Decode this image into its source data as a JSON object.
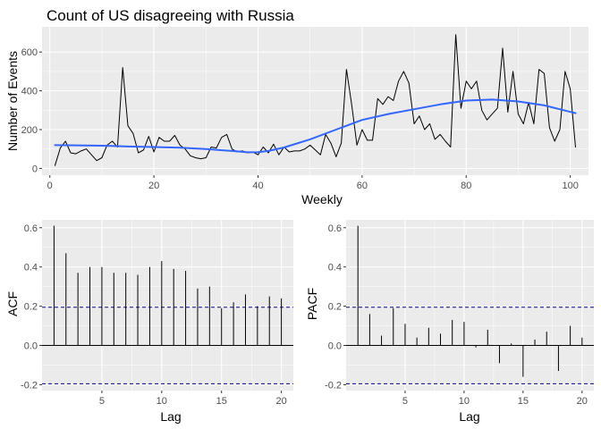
{
  "chart_data": [
    {
      "id": "events",
      "type": "line",
      "title": "Count of US disagreeing with Russia",
      "xlabel": "Weekly",
      "ylabel": "Number of Events",
      "xlim": [
        -1.5,
        103.5
      ],
      "ylim": [
        -35,
        730
      ],
      "xticks": [
        0,
        20,
        40,
        60,
        80,
        100
      ],
      "yticks": [
        0,
        200,
        400,
        600
      ],
      "grid": true,
      "series": [
        {
          "kind": "raw",
          "color": "#000000",
          "x": [
            1,
            2,
            3,
            4,
            5,
            6,
            7,
            8,
            9,
            10,
            11,
            12,
            13,
            14,
            15,
            16,
            17,
            18,
            19,
            20,
            21,
            22,
            23,
            24,
            25,
            26,
            27,
            28,
            29,
            30,
            31,
            32,
            33,
            34,
            35,
            36,
            37,
            38,
            39,
            40,
            41,
            42,
            43,
            44,
            45,
            46,
            47,
            48,
            49,
            50,
            51,
            52,
            53,
            54,
            55,
            56,
            57,
            58,
            59,
            60,
            61,
            62,
            63,
            64,
            65,
            66,
            67,
            68,
            69,
            70,
            71,
            72,
            73,
            74,
            75,
            76,
            77,
            78,
            79,
            80,
            81,
            82,
            83,
            84,
            85,
            86,
            87,
            88,
            89,
            90,
            91,
            92,
            93,
            94,
            95,
            96,
            97,
            98,
            99,
            100,
            101
          ],
          "y": [
            15,
            105,
            140,
            80,
            75,
            90,
            100,
            70,
            40,
            55,
            120,
            140,
            110,
            520,
            220,
            180,
            80,
            95,
            165,
            85,
            160,
            140,
            140,
            170,
            120,
            100,
            65,
            55,
            50,
            55,
            110,
            105,
            160,
            175,
            100,
            85,
            90,
            80,
            85,
            70,
            110,
            80,
            125,
            70,
            110,
            85,
            90,
            90,
            100,
            120,
            95,
            70,
            175,
            130,
            60,
            130,
            510,
            330,
            120,
            200,
            145,
            145,
            360,
            330,
            370,
            350,
            450,
            500,
            440,
            230,
            270,
            200,
            230,
            150,
            175,
            140,
            110,
            690,
            310,
            450,
            410,
            450,
            300,
            250,
            280,
            310,
            620,
            290,
            500,
            280,
            230,
            340,
            230,
            510,
            490,
            210,
            140,
            200,
            500,
            410,
            110
          ]
        },
        {
          "kind": "smooth",
          "color": "#3366ff",
          "x": [
            1,
            5,
            10,
            15,
            20,
            25,
            30,
            35,
            38,
            40,
            42,
            45,
            50,
            55,
            60,
            65,
            70,
            75,
            80,
            85,
            90,
            95,
            101
          ],
          "y": [
            120,
            119,
            117,
            113,
            110,
            107,
            100,
            90,
            83,
            84,
            90,
            108,
            150,
            200,
            250,
            280,
            305,
            330,
            350,
            355,
            345,
            325,
            285
          ]
        }
      ]
    },
    {
      "id": "acf",
      "type": "bar",
      "title": "",
      "xlabel": "Lag",
      "ylabel": "ACF",
      "xlim": [
        0,
        21
      ],
      "ylim": [
        -0.23,
        0.64
      ],
      "xticks": [
        5,
        10,
        15,
        20
      ],
      "yticks": [
        -0.2,
        0.0,
        0.2,
        0.4,
        0.6
      ],
      "ytick_labels": [
        "-0.2",
        "0.0",
        "0.2",
        "0.4",
        "0.6"
      ],
      "grid": true,
      "confidence_band": 0.195,
      "band_color": "#00008b",
      "x": [
        1,
        2,
        3,
        4,
        5,
        6,
        7,
        8,
        9,
        10,
        11,
        12,
        13,
        14,
        15,
        16,
        17,
        18,
        19,
        20
      ],
      "values": [
        0.61,
        0.47,
        0.37,
        0.4,
        0.4,
        0.37,
        0.37,
        0.36,
        0.4,
        0.43,
        0.39,
        0.38,
        0.29,
        0.3,
        0.19,
        0.22,
        0.26,
        0.2,
        0.25,
        0.24
      ]
    },
    {
      "id": "pacf",
      "type": "bar",
      "title": "",
      "xlabel": "Lag",
      "ylabel": "PACF",
      "xlim": [
        0,
        21
      ],
      "ylim": [
        -0.23,
        0.64
      ],
      "xticks": [
        5,
        10,
        15,
        20
      ],
      "yticks": [
        -0.2,
        0.0,
        0.2,
        0.4,
        0.6
      ],
      "ytick_labels": [
        "-0.2",
        "0.0",
        "0.2",
        "0.4",
        "0.6"
      ],
      "grid": true,
      "confidence_band": 0.195,
      "band_color": "#00008b",
      "x": [
        1,
        2,
        3,
        4,
        5,
        6,
        7,
        8,
        9,
        10,
        11,
        12,
        13,
        14,
        15,
        16,
        17,
        18,
        19,
        20
      ],
      "values": [
        0.61,
        0.16,
        0.05,
        0.19,
        0.11,
        0.04,
        0.09,
        0.06,
        0.13,
        0.12,
        -0.01,
        0.08,
        -0.09,
        0.01,
        -0.16,
        0.03,
        0.07,
        -0.13,
        0.1,
        0.04
      ]
    }
  ]
}
